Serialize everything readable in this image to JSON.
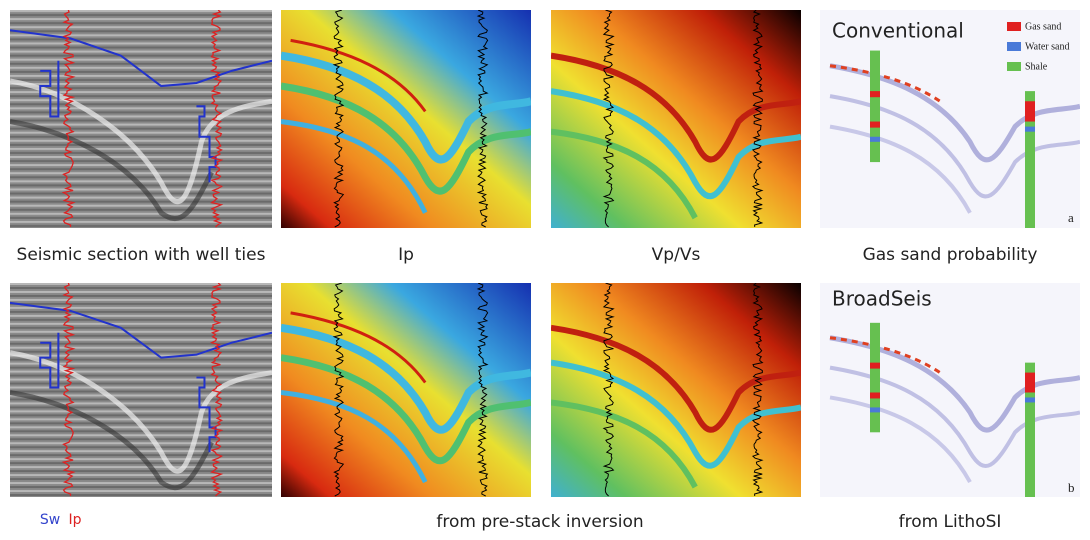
{
  "top_row": {
    "captions": [
      "Seismic section with well ties",
      "Ip",
      "Vp/Vs",
      "Gas sand probability"
    ],
    "probability_label": "Conventional",
    "panel_letter": "a"
  },
  "bottom_row": {
    "well_log_legend": [
      "Sw",
      "Ip"
    ],
    "inversion_caption": "from pre-stack inversion",
    "lithosi_caption": "from LithoSI",
    "probability_label": "BroadSeis",
    "panel_letter": "b"
  },
  "legend": [
    "Gas sand",
    "Water sand",
    "Shale"
  ]
}
